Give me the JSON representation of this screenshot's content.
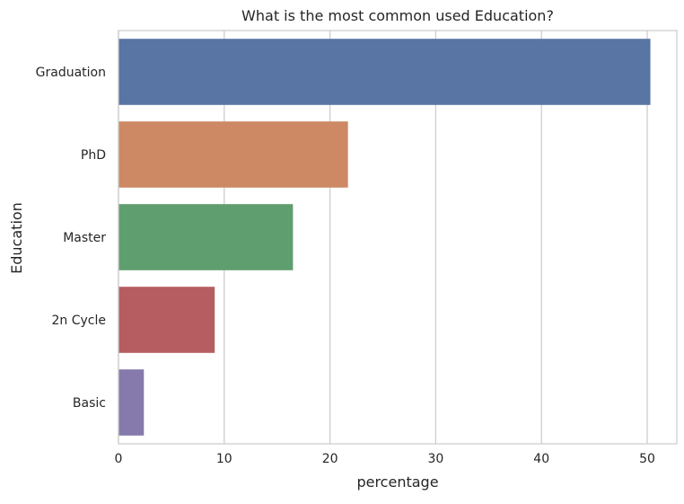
{
  "chart_data": {
    "type": "bar",
    "orientation": "horizontal",
    "title": "What is the most common used Education?",
    "xlabel": "percentage",
    "ylabel": "Education",
    "categories": [
      "Graduation",
      "PhD",
      "Master",
      "2n Cycle",
      "Basic"
    ],
    "values": [
      50.3,
      21.7,
      16.5,
      9.1,
      2.4
    ],
    "xlim": [
      0,
      52.8
    ],
    "xticks": [
      0,
      10,
      20,
      30,
      40,
      50
    ],
    "grid": "vertical",
    "colors": [
      "#5975a4",
      "#cc8963",
      "#5f9e6e",
      "#b55d60",
      "#857aab"
    ]
  }
}
